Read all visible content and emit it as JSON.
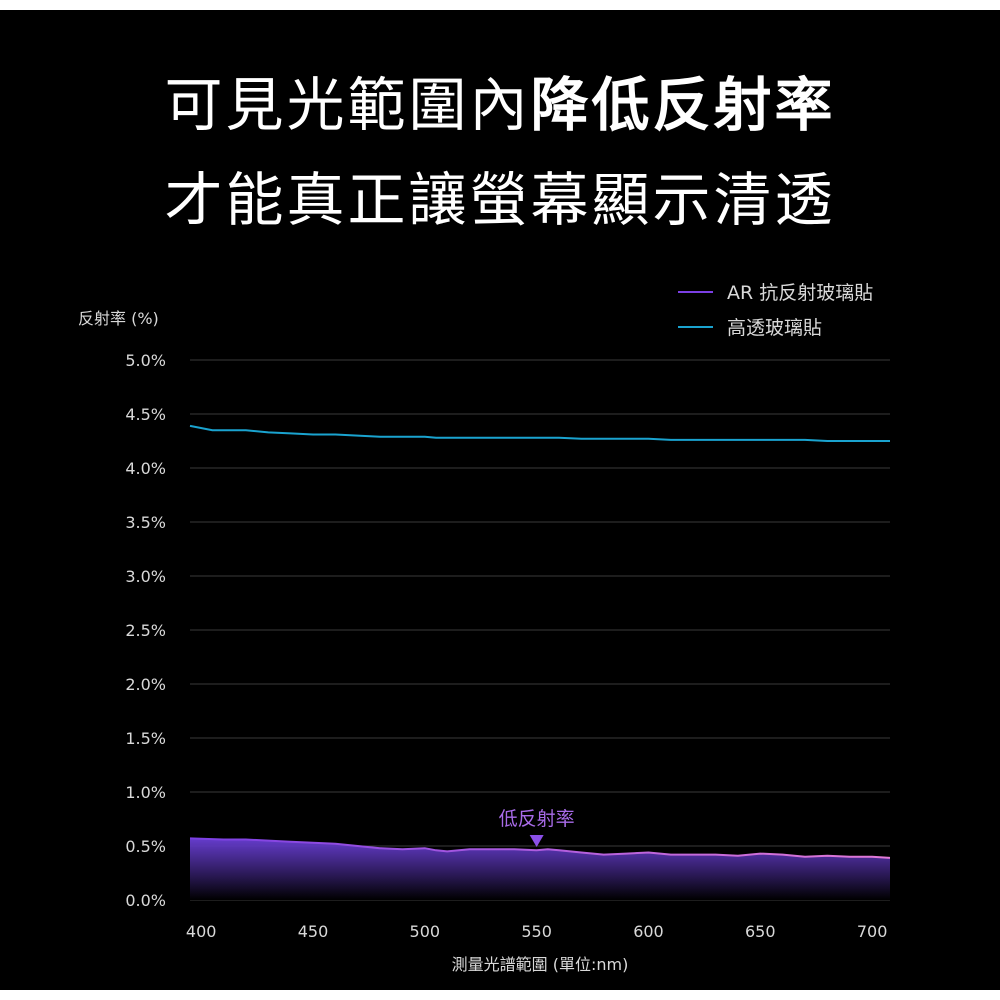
{
  "headline": {
    "line1_regular": "可見光範圍內",
    "line1_bold": "降低反射率",
    "line2": "才能真正讓螢幕顯示清透"
  },
  "chart_data": {
    "type": "area",
    "ylabel": "反射率 (%)",
    "xlabel": "測量光譜範圍 (單位:nm)",
    "xlim": [
      395,
      708
    ],
    "ylim": [
      0,
      5
    ],
    "yticks": [
      "0.0%",
      "0.5%",
      "1.0%",
      "1.5%",
      "2.0%",
      "2.5%",
      "3.0%",
      "3.5%",
      "4.0%",
      "4.5%",
      "5.0%"
    ],
    "ytick_values": [
      0,
      0.5,
      1,
      1.5,
      2,
      2.5,
      3,
      3.5,
      4,
      4.5,
      5
    ],
    "xticks": [
      "400",
      "450",
      "500",
      "550",
      "600",
      "650",
      "700"
    ],
    "xtick_values": [
      400,
      450,
      500,
      550,
      600,
      650,
      700
    ],
    "grid": true,
    "legend_position": "top-right",
    "annotation": {
      "text": "低反射率",
      "x": 550
    },
    "series": [
      {
        "name": "AR 抗反射玻璃貼",
        "color_start": "#7b3fe4",
        "color_end": "#e27ad7",
        "x": [
          395,
          410,
          420,
          430,
          440,
          450,
          460,
          470,
          480,
          490,
          500,
          505,
          510,
          520,
          530,
          540,
          550,
          555,
          560,
          570,
          580,
          590,
          600,
          610,
          620,
          630,
          640,
          650,
          660,
          670,
          680,
          690,
          700,
          708
        ],
        "y": [
          0.57,
          0.56,
          0.56,
          0.55,
          0.54,
          0.53,
          0.52,
          0.5,
          0.48,
          0.47,
          0.48,
          0.46,
          0.45,
          0.47,
          0.47,
          0.47,
          0.46,
          0.47,
          0.46,
          0.44,
          0.42,
          0.43,
          0.44,
          0.42,
          0.42,
          0.42,
          0.41,
          0.43,
          0.42,
          0.4,
          0.41,
          0.4,
          0.4,
          0.39
        ]
      },
      {
        "name": "高透玻璃貼",
        "color": "#1aa3cf",
        "x": [
          395,
          405,
          420,
          430,
          440,
          450,
          460,
          470,
          480,
          490,
          500,
          505,
          510,
          520,
          530,
          540,
          550,
          560,
          570,
          580,
          590,
          600,
          610,
          620,
          630,
          640,
          650,
          660,
          670,
          680,
          690,
          700,
          708
        ],
        "y": [
          4.39,
          4.35,
          4.35,
          4.33,
          4.32,
          4.31,
          4.31,
          4.3,
          4.29,
          4.29,
          4.29,
          4.28,
          4.28,
          4.28,
          4.28,
          4.28,
          4.28,
          4.28,
          4.27,
          4.27,
          4.27,
          4.27,
          4.26,
          4.26,
          4.26,
          4.26,
          4.26,
          4.26,
          4.26,
          4.25,
          4.25,
          4.25,
          4.25
        ]
      }
    ]
  }
}
